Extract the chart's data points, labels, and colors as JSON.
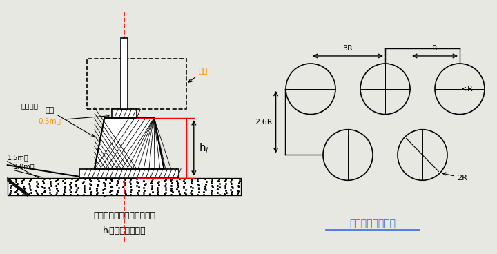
{
  "bg_color": "#f0f0f0",
  "left_title1": "不同土壤层厚处的夯实情况",
  "left_title2": "hᵢ为不同落锤高度",
  "right_title": "底座边缘为间隙型",
  "label_jijia": "机架",
  "label_luochui": "落锤",
  "label_zhaoli": "着力装置",
  "label_05m": "0.5m处",
  "label_15m": "1.5m处",
  "label_10m": "1.0m处",
  "label_hi": "hᵢ",
  "label_3R": "3R",
  "label_R_top": "R",
  "label_R_mid": "R",
  "label_26R": "2.6R",
  "label_2R": "2R",
  "line_color": "#000000",
  "red_color": "#ff0000",
  "orange_color": "#ff8c00",
  "blue_underline_color": "#4169e1"
}
